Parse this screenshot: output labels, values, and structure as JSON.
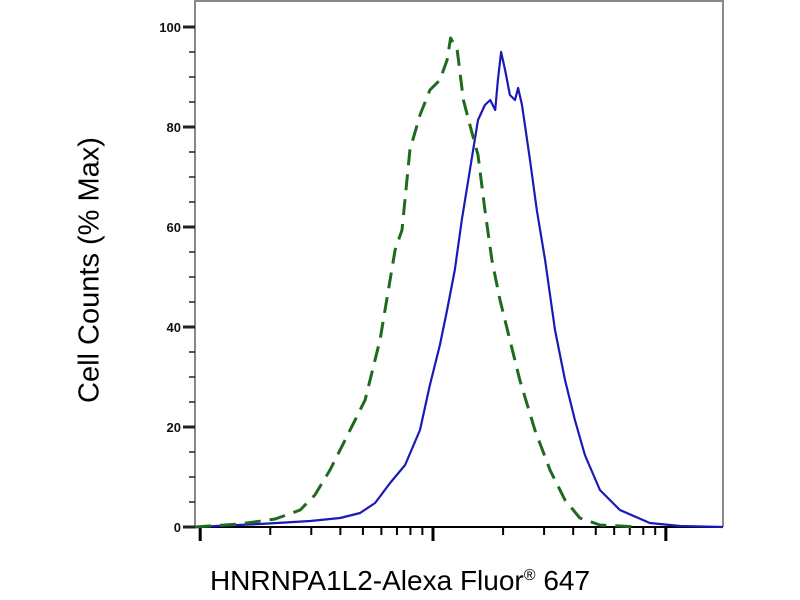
{
  "chart_data": {
    "type": "line",
    "title": "",
    "xlabel": "HNRNPA1L2-Alexa Fluor",
    "xlabel_mark": "®",
    "xlabel_suffix": " 647",
    "ylabel": "Cell Counts (% Max)",
    "xscale": "log",
    "xlim": [
      0.95,
      176
    ],
    "x_major_ticks": [
      1,
      10,
      100
    ],
    "ylim": [
      0,
      105
    ],
    "yticks": [
      0,
      20,
      40,
      60,
      80,
      100
    ],
    "ytick_labels": [
      "0",
      "20",
      "40",
      "60",
      "80",
      "100"
    ],
    "grid": false,
    "series": [
      {
        "style": "solid",
        "color": "#1a1ab8",
        "x": [
          0.95,
          1.81,
          2.97,
          3.99,
          4.86,
          5.64,
          6.54,
          7.59,
          8.79,
          9.7,
          10.7,
          11.5,
          12.4,
          13.3,
          14.4,
          15.6,
          16.7,
          17.6,
          18.5,
          19.0,
          19.6,
          20.4,
          21.4,
          22.5,
          23.2,
          24.1,
          26.1,
          27.9,
          30.3,
          33.4,
          36.9,
          40.7,
          44.9,
          52.1,
          63.5,
          85.3,
          115,
          176
        ],
        "y": [
          0,
          0.6,
          1.2,
          1.8,
          2.8,
          4.8,
          8.8,
          12.4,
          19.4,
          28.4,
          36.4,
          43.4,
          51.4,
          61.4,
          71.4,
          81.4,
          84.4,
          85.4,
          83.4,
          89.4,
          95,
          91.4,
          86.4,
          85.4,
          87.8,
          84.4,
          73.4,
          63.4,
          53.4,
          39.4,
          29.4,
          21.4,
          14.4,
          7.4,
          3.4,
          0.8,
          0.2,
          0
        ]
      },
      {
        "style": "dashed",
        "color": "#1e6b1e",
        "x": [
          0.95,
          1.48,
          2.1,
          2.69,
          3.11,
          3.61,
          4.19,
          5.11,
          5.92,
          6.87,
          7.36,
          7.96,
          8.79,
          9.7,
          10.7,
          11.5,
          11.9,
          12.7,
          13.5,
          14.4,
          15.6,
          16.7,
          17.9,
          19.4,
          21.4,
          23.6,
          27.4,
          31.8,
          36.9,
          42.7,
          52.1,
          77.3
        ],
        "y": [
          0,
          0.6,
          1.6,
          3.4,
          6.4,
          11.4,
          17.4,
          25.4,
          37.4,
          55.4,
          59.4,
          75.4,
          82.4,
          87.4,
          89.4,
          93.4,
          97.8,
          95.4,
          85.4,
          80.4,
          74.4,
          63.4,
          53.4,
          45.4,
          37.4,
          29.4,
          19.4,
          11.4,
          5.4,
          1.8,
          0.4,
          0
        ]
      }
    ]
  }
}
